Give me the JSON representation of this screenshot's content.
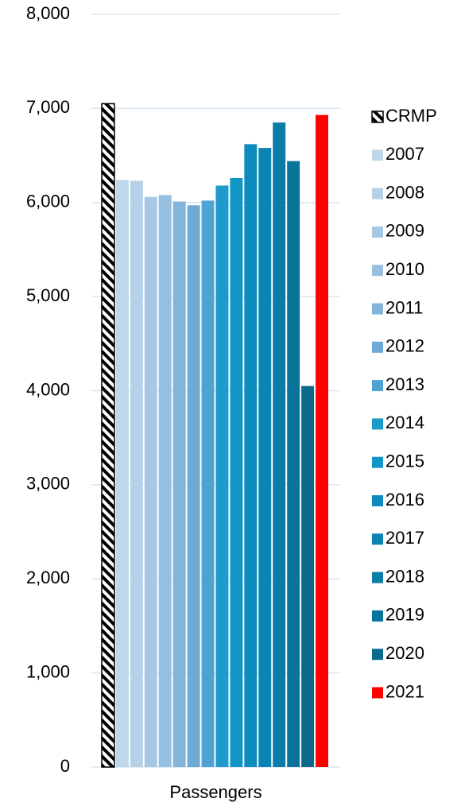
{
  "chart_data": {
    "type": "bar",
    "categories": [
      "Passengers"
    ],
    "series": [
      {
        "name": "CRMP",
        "color": "#000000",
        "pattern": "hatch",
        "values": [
          7050
        ]
      },
      {
        "name": "2007",
        "color": "#c0d7ea",
        "values": [
          6240
        ]
      },
      {
        "name": "2008",
        "color": "#b5d1e8",
        "values": [
          6230
        ]
      },
      {
        "name": "2009",
        "color": "#a6c8e4",
        "values": [
          6060
        ]
      },
      {
        "name": "2010",
        "color": "#97bfdf",
        "values": [
          6080
        ]
      },
      {
        "name": "2011",
        "color": "#83b4da",
        "values": [
          6010
        ]
      },
      {
        "name": "2012",
        "color": "#6eaad6",
        "values": [
          5970
        ]
      },
      {
        "name": "2013",
        "color": "#4fa3d3",
        "values": [
          6020
        ]
      },
      {
        "name": "2014",
        "color": "#1e9acb",
        "values": [
          6180
        ]
      },
      {
        "name": "2015",
        "color": "#1197c6",
        "values": [
          6260
        ]
      },
      {
        "name": "2016",
        "color": "#0d8bbc",
        "values": [
          6620
        ]
      },
      {
        "name": "2017",
        "color": "#0c84b3",
        "values": [
          6580
        ]
      },
      {
        "name": "2018",
        "color": "#0b7ca8",
        "values": [
          6850
        ]
      },
      {
        "name": "2019",
        "color": "#0a7399",
        "values": [
          6440
        ]
      },
      {
        "name": "2020",
        "color": "#096a8c",
        "values": [
          4050
        ]
      },
      {
        "name": "2021",
        "color": "#ff0000",
        "values": [
          6930
        ]
      }
    ],
    "ylim": [
      0,
      8000
    ],
    "yticks": [
      0,
      {
        "value": 1000,
        "label": "1,000"
      },
      {
        "value": 2000,
        "label": "2,000"
      },
      {
        "value": 3000,
        "label": "3,000"
      },
      {
        "value": 4000,
        "label": "4,000"
      },
      {
        "value": 5000,
        "label": "5,000"
      },
      {
        "value": 6000,
        "label": "6,000"
      },
      {
        "value": 7000,
        "label": "7,000"
      },
      {
        "value": 8000,
        "label": "8,000"
      }
    ],
    "grid": true,
    "legend": "right"
  }
}
